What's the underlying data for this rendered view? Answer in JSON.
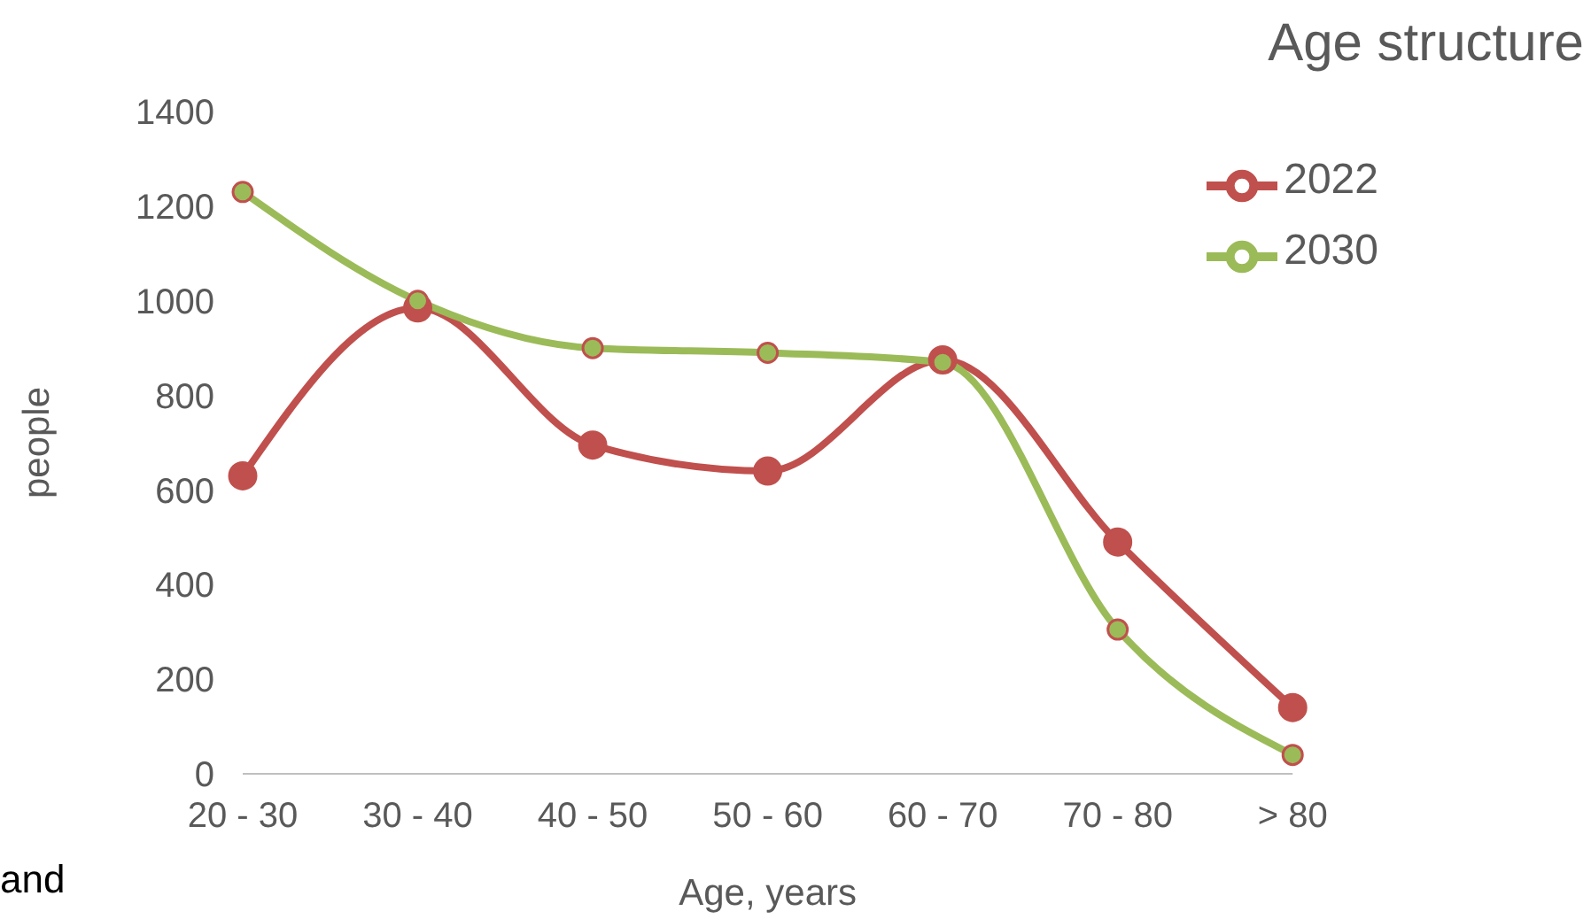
{
  "chart_data": {
    "type": "line",
    "title": "Age structure",
    "xlabel": "Age, years",
    "ylabel": "people",
    "annotations": [
      "and"
    ],
    "categories": [
      "20 - 30",
      "30 - 40",
      "40 - 50",
      "50  - 60",
      "60  - 70",
      "70  - 80",
      "> 80"
    ],
    "series": [
      {
        "name": "2022",
        "color": "#c0504d",
        "values": [
          630,
          985,
          695,
          640,
          875,
          490,
          140
        ]
      },
      {
        "name": "2030",
        "color": "#9bbb59",
        "values": [
          1230,
          1000,
          900,
          890,
          870,
          305,
          40
        ]
      }
    ],
    "ylim": [
      0,
      1400
    ],
    "yticks": [
      0,
      200,
      400,
      600,
      800,
      1000,
      1200,
      1400
    ],
    "grid": false,
    "legend": "top right",
    "marker": "circle",
    "line_style": "solid"
  }
}
